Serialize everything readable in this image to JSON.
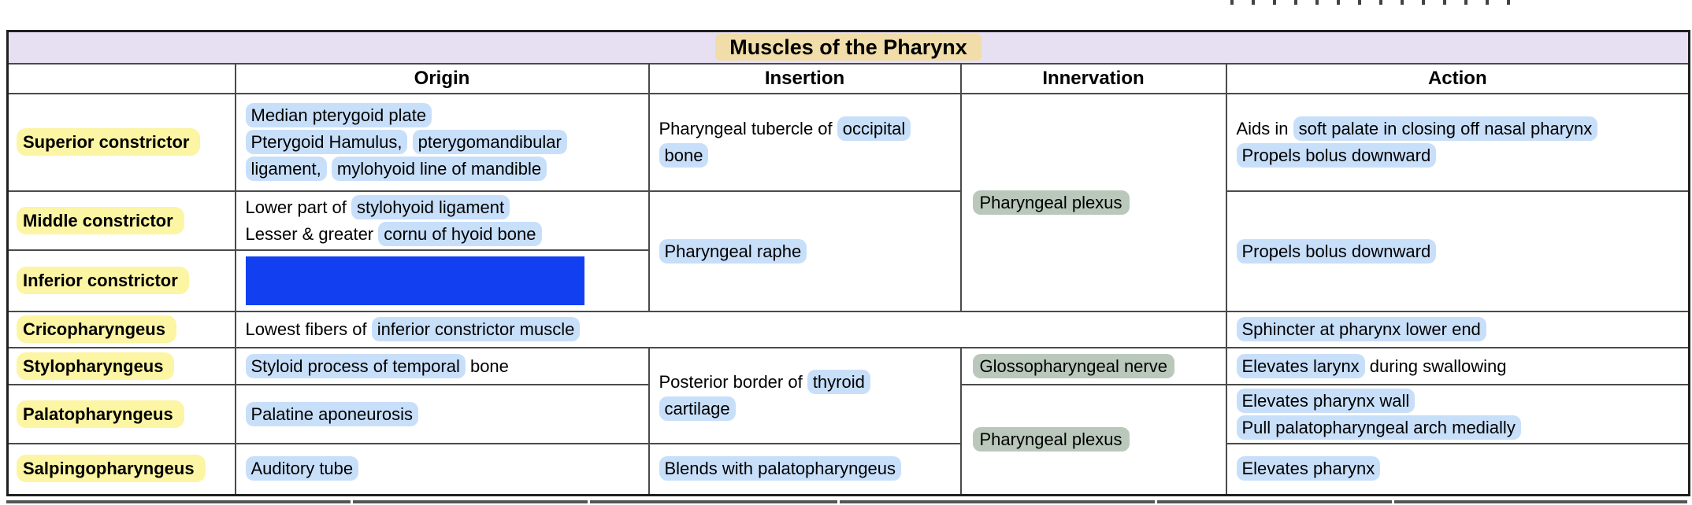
{
  "table": {
    "title": "Muscles of the Pharynx",
    "columns": [
      "",
      "Origin",
      "Insertion",
      "Innervation",
      "Action"
    ]
  },
  "colors": {
    "title_bg": "#e7e0f3",
    "title_hl": "#f0dda9",
    "name_hl": "#fcf5a3",
    "hl_blue": "#c8dffa",
    "hl_green": "#b9c8bb",
    "box_blue": "#1240f0",
    "border_inner": "#4a4a4a",
    "border_outer": "#1f1f1f"
  },
  "cells": {
    "r1_name": "Superior constrictor",
    "r2_name": "Middle constrictor",
    "r3_name": "Inferior constrictor",
    "r4_name": "Cricopharyngeus",
    "r5_name": "Stylopharyngeus",
    "r6_name": "Palatopharyngeus",
    "r7_name": "Salpingopharyngeus",
    "r1_origin": {
      "lines": [
        [
          {
            "t": "Median pterygoid plate",
            "h": "b"
          }
        ],
        [
          {
            "t": "Pterygoid Hamulus,",
            "h": "b"
          },
          {
            "t": " "
          },
          {
            "t": "pterygomandibular",
            "h": "b"
          }
        ],
        [
          {
            "t": "ligament,",
            "h": "b"
          },
          {
            "t": " "
          },
          {
            "t": "mylohyoid line of mandible",
            "h": "b"
          }
        ]
      ]
    },
    "r1_insertion": {
      "lines": [
        [
          {
            "t": "Pharyngeal tubercle of "
          },
          {
            "t": "occipital",
            "h": "b"
          }
        ],
        [
          {
            "t": "bone",
            "h": "b"
          }
        ]
      ]
    },
    "inn123": {
      "lines": [
        [
          {
            "t": "Pharyngeal plexus",
            "h": "g"
          }
        ]
      ]
    },
    "r1_action": {
      "lines": [
        [
          {
            "t": "Aids in "
          },
          {
            "t": "soft palate in closing off nasal pharynx",
            "h": "b"
          }
        ],
        [
          {
            "t": "Propels bolus downward",
            "h": "b"
          }
        ]
      ]
    },
    "r2_origin": {
      "lines": [
        [
          {
            "t": "Lower part of "
          },
          {
            "t": "stylohyoid ligament",
            "h": "b"
          }
        ],
        [
          {
            "t": "Lesser & greater "
          },
          {
            "t": "cornu of hyoid bone",
            "h": "b"
          }
        ]
      ]
    },
    "ins23": {
      "lines": [
        [
          {
            "t": "Pharyngeal raphe",
            "h": "b"
          }
        ]
      ]
    },
    "act23": {
      "lines": [
        [
          {
            "t": "Propels bolus downward",
            "h": "b"
          }
        ]
      ]
    },
    "r4_origin": {
      "lines": [
        [
          {
            "t": "Lowest fibers of "
          },
          {
            "t": "inferior constrictor muscle",
            "h": "b"
          }
        ]
      ]
    },
    "r4_action": {
      "lines": [
        [
          {
            "t": "Sphincter at pharynx lower end",
            "h": "b"
          }
        ]
      ]
    },
    "r5_origin": {
      "lines": [
        [
          {
            "t": "Styloid process of temporal",
            "h": "b"
          },
          {
            "t": " bone"
          }
        ]
      ]
    },
    "ins56": {
      "lines": [
        [
          {
            "t": "Posterior border of "
          },
          {
            "t": "thyroid",
            "h": "b"
          }
        ],
        [
          {
            "t": "cartilage",
            "h": "b"
          }
        ]
      ]
    },
    "r5_innervation": {
      "lines": [
        [
          {
            "t": "Glossopharyngeal nerve",
            "h": "g"
          }
        ]
      ]
    },
    "r5_action": {
      "lines": [
        [
          {
            "t": "Elevates larynx",
            "h": "b"
          },
          {
            "t": " during swallowing"
          }
        ]
      ]
    },
    "r6_origin": {
      "lines": [
        [
          {
            "t": "Palatine aponeurosis",
            "h": "b"
          }
        ]
      ]
    },
    "inn67": {
      "lines": [
        [
          {
            "t": "Pharyngeal plexus",
            "h": "g"
          }
        ]
      ]
    },
    "r6_action": {
      "lines": [
        [
          {
            "t": "Elevates pharynx wall",
            "h": "b"
          }
        ],
        [
          {
            "t": "Pull palatopharyngeal arch medially",
            "h": "b"
          }
        ]
      ]
    },
    "r7_origin": {
      "lines": [
        [
          {
            "t": "Auditory tube",
            "h": "b"
          }
        ]
      ]
    },
    "r7_insertion": {
      "lines": [
        [
          {
            "t": "Blends with palatopharyngeus",
            "h": "b"
          }
        ]
      ]
    },
    "r7_action": {
      "lines": [
        [
          {
            "t": "Elevates pharynx",
            "h": "b"
          }
        ]
      ]
    }
  }
}
